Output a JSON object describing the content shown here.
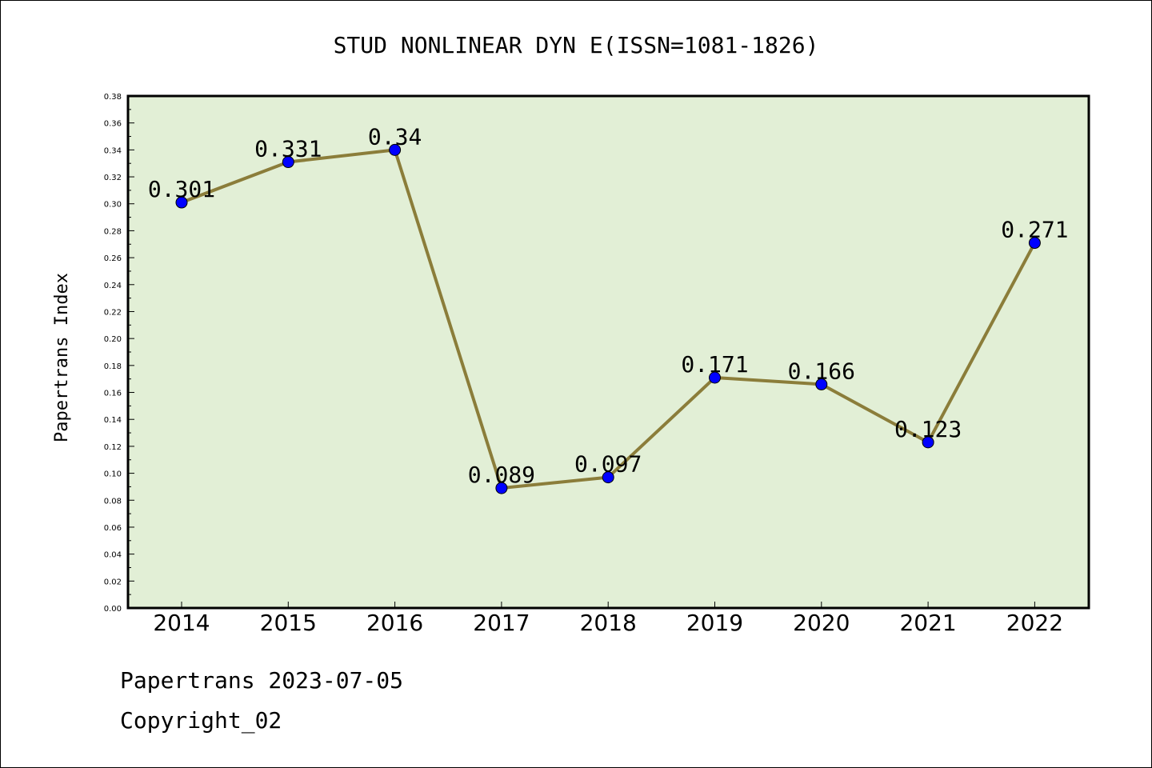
{
  "chart_data": {
    "type": "line",
    "title": "STUD NONLINEAR DYN E(ISSN=1081-1826)",
    "xlabel": "",
    "ylabel": "Papertrans Index",
    "categories": [
      "2014",
      "2015",
      "2016",
      "2017",
      "2018",
      "2019",
      "2020",
      "2021",
      "2022"
    ],
    "values": [
      0.301,
      0.331,
      0.34,
      0.089,
      0.097,
      0.171,
      0.166,
      0.123,
      0.271
    ],
    "data_labels": [
      "0.301",
      "0.331",
      "0.34",
      "0.089",
      "0.097",
      "0.171",
      "0.166",
      "0.123",
      "0.271"
    ],
    "ylim": [
      0,
      0.38
    ],
    "yticks": [
      "0.00",
      "0.02",
      "0.04",
      "0.06",
      "0.08",
      "0.10",
      "0.12",
      "0.14",
      "0.16",
      "0.18",
      "0.20",
      "0.22",
      "0.24",
      "0.26",
      "0.28",
      "0.30",
      "0.32",
      "0.34",
      "0.36",
      "0.38"
    ],
    "grid": false,
    "colors": {
      "plot_background": "#e2efd6",
      "line": "#8b7d3a",
      "marker": "#0000ff"
    }
  },
  "footer": {
    "line1": "Papertrans 2023-07-05",
    "line2": "Copyright_02"
  }
}
